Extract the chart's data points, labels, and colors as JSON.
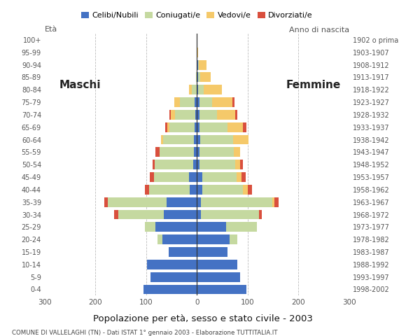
{
  "age_groups": [
    "0-4",
    "5-9",
    "10-14",
    "15-19",
    "20-24",
    "25-29",
    "30-34",
    "35-39",
    "40-44",
    "45-49",
    "50-54",
    "55-59",
    "60-64",
    "65-69",
    "70-74",
    "75-79",
    "80-84",
    "85-89",
    "90-94",
    "95-99",
    "100+"
  ],
  "birth_years": [
    "1998-2002",
    "1993-1997",
    "1988-1992",
    "1983-1987",
    "1978-1982",
    "1973-1977",
    "1968-1972",
    "1963-1967",
    "1958-1962",
    "1953-1957",
    "1948-1952",
    "1943-1947",
    "1938-1942",
    "1933-1937",
    "1928-1932",
    "1923-1927",
    "1918-1922",
    "1913-1917",
    "1908-1912",
    "1903-1907",
    "1902 o prima"
  ],
  "males": {
    "celibe": [
      105,
      92,
      98,
      55,
      68,
      82,
      65,
      60,
      14,
      15,
      8,
      6,
      6,
      4,
      3,
      4,
      0,
      0,
      0,
      0,
      0
    ],
    "coniugato": [
      0,
      0,
      0,
      0,
      10,
      20,
      90,
      115,
      80,
      70,
      75,
      68,
      60,
      50,
      40,
      30,
      10,
      2,
      0,
      0,
      0
    ],
    "vedovo": [
      0,
      0,
      0,
      0,
      0,
      0,
      0,
      0,
      0,
      0,
      0,
      0,
      5,
      5,
      8,
      10,
      5,
      0,
      0,
      0,
      0
    ],
    "divorziato": [
      0,
      0,
      0,
      0,
      0,
      0,
      8,
      8,
      8,
      8,
      5,
      8,
      0,
      4,
      3,
      0,
      0,
      0,
      0,
      0,
      0
    ]
  },
  "females": {
    "nubile": [
      98,
      85,
      80,
      60,
      65,
      58,
      8,
      8,
      10,
      10,
      5,
      5,
      6,
      5,
      5,
      5,
      2,
      2,
      2,
      0,
      0
    ],
    "coniugata": [
      0,
      0,
      0,
      0,
      15,
      60,
      115,
      140,
      80,
      68,
      70,
      68,
      65,
      55,
      35,
      25,
      12,
      5,
      2,
      0,
      0
    ],
    "vedova": [
      0,
      0,
      0,
      0,
      0,
      0,
      0,
      5,
      10,
      10,
      10,
      12,
      30,
      30,
      35,
      40,
      35,
      20,
      15,
      2,
      0
    ],
    "divorziata": [
      0,
      0,
      0,
      0,
      0,
      0,
      5,
      8,
      8,
      8,
      5,
      0,
      0,
      8,
      5,
      4,
      0,
      0,
      0,
      0,
      0
    ]
  },
  "colors": {
    "celibe": "#4472C4",
    "coniugato": "#C5D9A0",
    "vedovo": "#F5C96A",
    "divorziato": "#D94F3D"
  },
  "xlim": 300,
  "title": "Popolazione per età, sesso e stato civile - 2003",
  "subtitle": "COMUNE DI VALLELAGHI (TN) - Dati ISTAT 1° gennaio 2003 - Elaborazione TUTTITALIA.IT",
  "legend_labels": [
    "Celibi/Nubili",
    "Coniugati/e",
    "Vedovi/e",
    "Divorziati/e"
  ],
  "ylabel_left": "Età",
  "ylabel_right": "Anno di nascita",
  "label_maschi": "Maschi",
  "label_femmine": "Femmine",
  "bg_color": "#FFFFFF",
  "grid_color": "#BBBBBB"
}
